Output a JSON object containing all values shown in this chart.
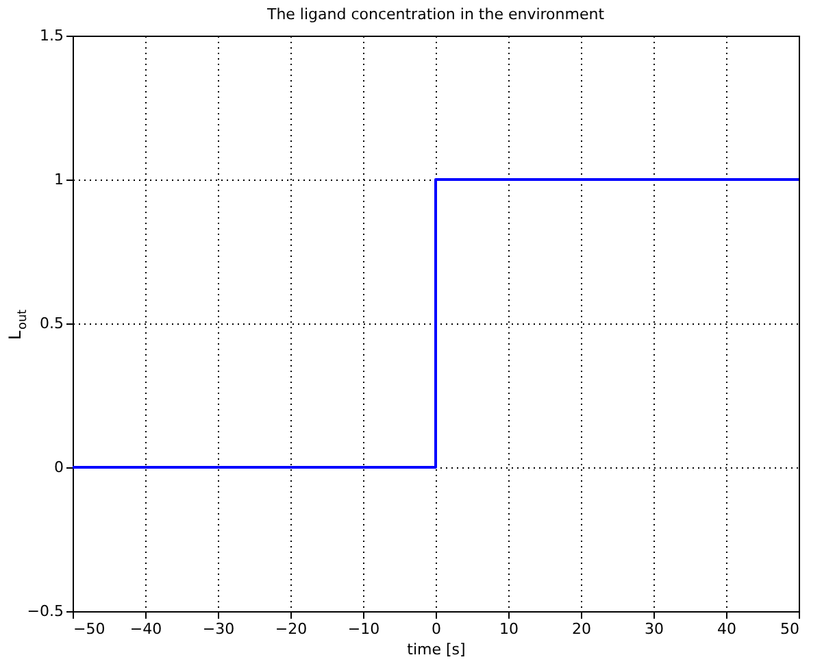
{
  "chart_data": {
    "type": "step",
    "title": "The ligand concentration in the environment",
    "xlabel": "time [s]",
    "ylabel": "L$_{out}$",
    "x": [
      -50,
      0,
      50
    ],
    "series": [
      {
        "color": "#0000ff",
        "values": [
          0,
          1,
          1
        ]
      }
    ],
    "xlim": [
      -50,
      50
    ],
    "xticks": [
      -50,
      -40,
      -30,
      -20,
      -10,
      0,
      10,
      20,
      30,
      40,
      50
    ],
    "ylim": [
      -0.5,
      1.5
    ],
    "yticks": [
      -0.5,
      0,
      0.5,
      1,
      1.5
    ],
    "grid": true,
    "line_style": "solid",
    "marker": "none"
  }
}
